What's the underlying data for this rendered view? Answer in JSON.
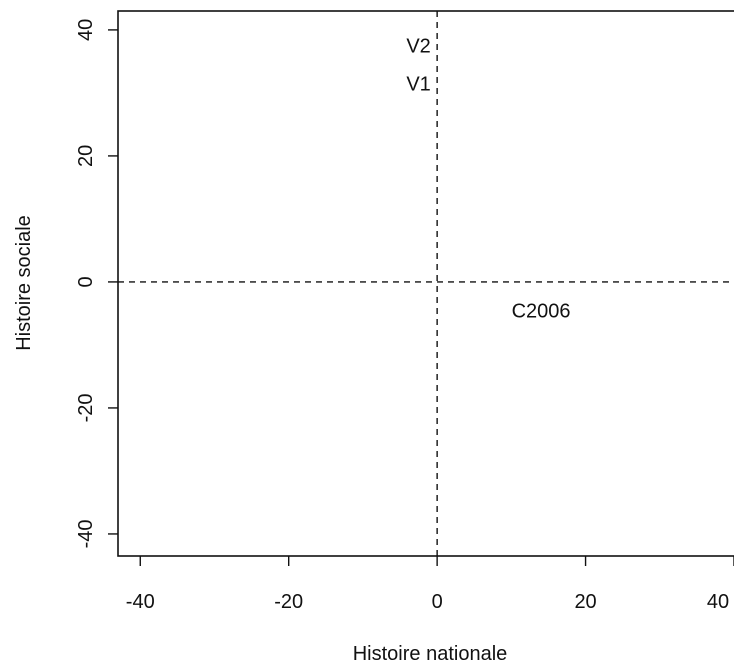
{
  "chart_data": {
    "type": "scatter",
    "xlabel": "Histoire nationale",
    "ylabel": "Histoire sociale",
    "xlim": [
      -43,
      40
    ],
    "ylim": [
      -43.5,
      43
    ],
    "xticks": [
      -40,
      -20,
      0,
      20,
      40
    ],
    "yticks": [
      -40,
      -20,
      0,
      20,
      40
    ],
    "x_tick_labels": [
      "-40",
      "-20",
      "0",
      "20",
      "40"
    ],
    "y_tick_labels": [
      "-40",
      "-20",
      "0",
      "20",
      "40"
    ],
    "reference_lines": {
      "x": 0,
      "y": 0,
      "style": "dashed"
    },
    "grid": false,
    "points": [
      {
        "label": "V2",
        "x": -2.5,
        "y": 37.5
      },
      {
        "label": "V1",
        "x": -2.5,
        "y": 31.5
      },
      {
        "label": "C2006",
        "x": 14,
        "y": -4.5
      }
    ]
  }
}
